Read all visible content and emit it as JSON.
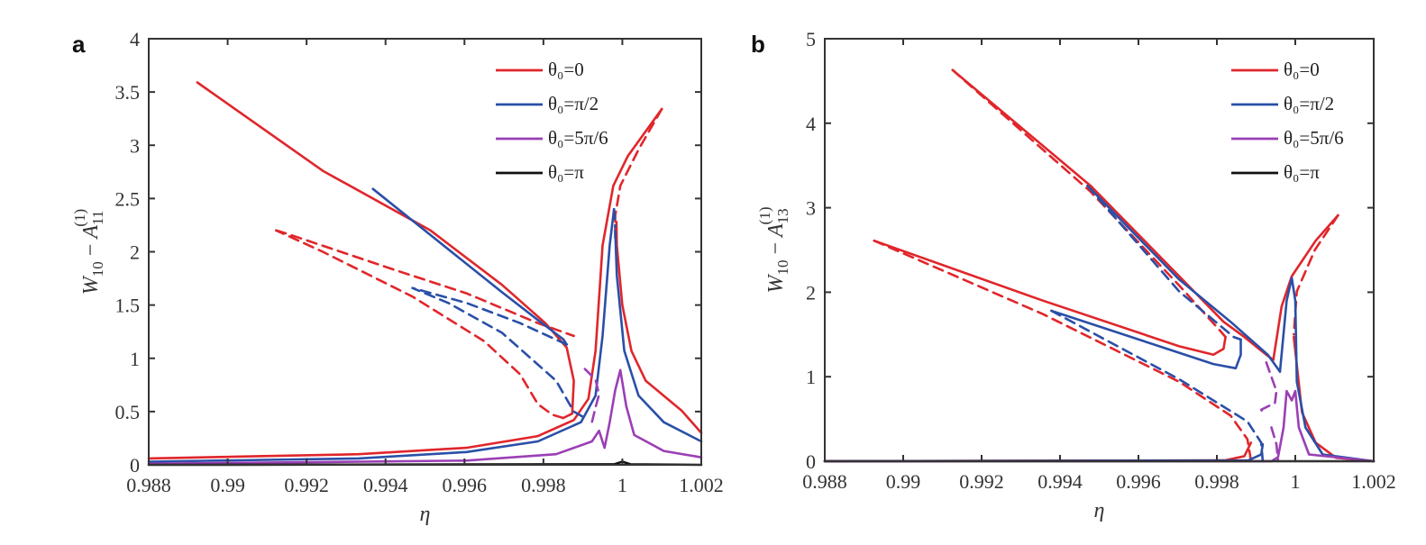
{
  "chart_data": [
    {
      "type": "line",
      "panel_label": "a",
      "xlabel": "η",
      "ylabel": {
        "base": "W",
        "sub": "10",
        "op": " − ",
        "base2": "A",
        "sub2": "11",
        "sup2": "(1)"
      },
      "xlim": [
        0.988,
        1.002
      ],
      "ylim": [
        0,
        4
      ],
      "xticks": [
        "0.988",
        "0.99",
        "0.992",
        "0.994",
        "0.996",
        "0.998",
        "1",
        "1.002"
      ],
      "yticks": [
        "0",
        "0.5",
        "1",
        "1.5",
        "2",
        "2.5",
        "3",
        "3.5",
        "4"
      ],
      "grid": false,
      "legend_position": "top-right",
      "series": [
        {
          "name": "θ₀=0",
          "color": "#e0262b",
          "solid": [
            [
              [
                0.98923,
                3.59
              ],
              [
                0.99241,
                2.76
              ],
              [
                0.99514,
                2.2
              ],
              [
                0.99695,
                1.69
              ],
              [
                0.99805,
                1.33
              ],
              [
                0.99859,
                1.1
              ],
              [
                0.99877,
                0.79
              ],
              [
                0.99873,
                0.48
              ],
              [
                0.9985,
                0.44
              ]
            ],
            [
              [
                0.988,
                0.06
              ],
              [
                0.99332,
                0.1
              ],
              [
                0.99605,
                0.16
              ],
              [
                0.99786,
                0.27
              ],
              [
                0.99877,
                0.42
              ],
              [
                0.99914,
                0.62
              ],
              [
                0.99932,
                1.07
              ],
              [
                0.9995,
                2.06
              ],
              [
                0.99977,
                2.62
              ],
              [
                1.00014,
                2.9
              ],
              [
                1.001,
                3.34
              ]
            ],
            [
              [
                0.99985,
                2.28
              ],
              [
                0.99986,
                2.06
              ],
              [
                1.0,
                1.5
              ],
              [
                1.00023,
                1.07
              ],
              [
                1.00059,
                0.79
              ],
              [
                1.0015,
                0.51
              ],
              [
                1.002,
                0.3
              ]
            ]
          ],
          "dashed": [
            [
              [
                0.9985,
                0.44
              ],
              [
                0.99823,
                0.47
              ],
              [
                0.99786,
                0.57
              ],
              [
                0.99741,
                0.85
              ],
              [
                0.9965,
                1.16
              ],
              [
                0.99468,
                1.58
              ],
              [
                0.99241,
                2.0
              ],
              [
                0.99123,
                2.2
              ]
            ],
            [
              [
                0.99123,
                2.2
              ],
              [
                0.9915,
                2.17
              ],
              [
                0.99423,
                1.83
              ],
              [
                0.99605,
                1.61
              ],
              [
                0.99786,
                1.33
              ],
              [
                0.99877,
                1.21
              ]
            ],
            [
              [
                1.001,
                3.34
              ],
              [
                1.00041,
                2.96
              ],
              [
                0.99995,
                2.62
              ],
              [
                0.99982,
                2.34
              ],
              [
                0.99982,
                2.11
              ]
            ]
          ]
        },
        {
          "name": "θ₀=π/2",
          "color": "#2a4fa8",
          "solid": [
            [
              [
                0.99368,
                2.59
              ],
              [
                0.99695,
                1.62
              ],
              [
                0.99786,
                1.36
              ],
              [
                0.9985,
                1.18
              ],
              [
                0.99859,
                1.13
              ]
            ],
            [
              [
                0.988,
                0.03
              ],
              [
                0.99332,
                0.06
              ],
              [
                0.99605,
                0.12
              ],
              [
                0.99786,
                0.22
              ],
              [
                0.99895,
                0.4
              ],
              [
                0.99932,
                0.65
              ],
              [
                0.9995,
                1.21
              ],
              [
                0.99968,
                2.06
              ],
              [
                0.99979,
                2.4
              ]
            ],
            [
              [
                0.99982,
                2.2
              ],
              [
                0.99986,
                1.78
              ],
              [
                1.00005,
                1.07
              ],
              [
                1.00041,
                0.65
              ],
              [
                1.00105,
                0.4
              ],
              [
                1.002,
                0.22
              ]
            ]
          ],
          "dashed": [
            [
              [
                0.99859,
                1.13
              ],
              [
                0.99741,
                1.33
              ],
              [
                0.99605,
                1.52
              ],
              [
                0.99468,
                1.66
              ],
              [
                0.99559,
                1.52
              ],
              [
                0.99695,
                1.24
              ],
              [
                0.99832,
                0.79
              ],
              [
                0.99877,
                0.5
              ],
              [
                0.99905,
                0.44
              ]
            ],
            [
              [
                0.99979,
                2.4
              ],
              [
                0.99982,
                2.23
              ]
            ]
          ]
        },
        {
          "name": "θ₀=5π/6",
          "color": "#9b3fb5",
          "solid": [
            [
              [
                0.988,
                0.01
              ],
              [
                0.99605,
                0.04
              ],
              [
                0.99832,
                0.1
              ],
              [
                0.99923,
                0.22
              ],
              [
                0.99941,
                0.32
              ],
              [
                0.99955,
                0.16
              ],
              [
                0.99968,
                0.4
              ],
              [
                0.99982,
                0.7
              ],
              [
                0.99995,
                0.89
              ],
              [
                1.0001,
                0.55
              ],
              [
                1.0003,
                0.28
              ],
              [
                1.00105,
                0.13
              ],
              [
                1.002,
                0.07
              ]
            ]
          ],
          "dashed": [
            [
              [
                0.99905,
                0.9
              ],
              [
                0.99932,
                0.8
              ],
              [
                0.99941,
                0.66
              ],
              [
                0.99932,
                0.54
              ],
              [
                0.99923,
                0.4
              ]
            ]
          ]
        },
        {
          "name": "θ₀=π",
          "color": "#111111",
          "solid": [
            [
              [
                0.988,
                0.0
              ],
              [
                0.9998,
                0.005
              ],
              [
                1.0,
                0.03
              ],
              [
                1.0002,
                0.005
              ],
              [
                1.002,
                0.0
              ]
            ]
          ],
          "dashed": []
        }
      ]
    },
    {
      "type": "line",
      "panel_label": "b",
      "xlabel": "η",
      "ylabel": {
        "base": "W",
        "sub": "10",
        "op": " − ",
        "base2": "A",
        "sub2": "13",
        "sup2": "(1)"
      },
      "xlim": [
        0.988,
        1.002
      ],
      "ylim": [
        0,
        5
      ],
      "xticks": [
        "0.988",
        "0.99",
        "0.992",
        "0.994",
        "0.996",
        "0.998",
        "1",
        "1.002"
      ],
      "yticks": [
        "0",
        "1",
        "2",
        "3",
        "4",
        "5"
      ],
      "grid": false,
      "legend_position": "top-right",
      "series": [
        {
          "name": "θ₀=0",
          "color": "#e0262b",
          "solid": [
            [
              [
                0.99126,
                4.63
              ],
              [
                0.99478,
                3.26
              ],
              [
                0.99704,
                2.19
              ],
              [
                0.99817,
                1.65
              ],
              [
                0.9987,
                1.47
              ],
              [
                0.99926,
                1.26
              ],
              [
                0.99944,
                1.2
              ]
            ],
            [
              [
                0.98926,
                2.61
              ],
              [
                0.99357,
                1.9
              ],
              [
                0.99704,
                1.36
              ],
              [
                0.99791,
                1.26
              ],
              [
                0.99817,
                1.33
              ],
              [
                0.99822,
                1.47
              ]
            ],
            [
              [
                0.988,
                0
              ],
              [
                0.9982,
                0.01
              ],
              [
                0.9987,
                0.06
              ],
              [
                0.99887,
                0.22
              ]
            ],
            [
              [
                0.99944,
                1.2
              ],
              [
                0.99965,
                1.83
              ],
              [
                0.99991,
                2.19
              ],
              [
                1.00052,
                2.61
              ],
              [
                1.00109,
                2.91
              ]
            ],
            [
              [
                0.99996,
                1.47
              ],
              [
                1.00017,
                0.58
              ],
              [
                1.00052,
                0.22
              ],
              [
                1.00104,
                0.04
              ],
              [
                1.002,
                0
              ]
            ]
          ],
          "dashed": [
            [
              [
                0.99126,
                4.63
              ],
              [
                0.99478,
                3.19
              ],
              [
                0.99704,
                2.08
              ],
              [
                0.99809,
                1.54
              ],
              [
                0.99822,
                1.47
              ]
            ],
            [
              [
                0.98926,
                2.61
              ],
              [
                0.99357,
                1.74
              ],
              [
                0.99704,
                0.94
              ],
              [
                0.99835,
                0.54
              ],
              [
                0.99878,
                0.26
              ],
              [
                0.99887,
                0.01
              ]
            ],
            [
              [
                1.00109,
                2.91
              ],
              [
                1.0005,
                2.5
              ],
              [
                1.00004,
                2.01
              ],
              [
                0.99996,
                1.5
              ]
            ]
          ]
        },
        {
          "name": "θ₀=π/2",
          "color": "#2a4fa8",
          "solid": [
            [
              [
                0.9947,
                3.26
              ],
              [
                0.99704,
                2.15
              ],
              [
                0.99835,
                1.65
              ],
              [
                0.9993,
                1.26
              ],
              [
                0.99961,
                1.06
              ]
            ],
            [
              [
                0.99378,
                1.78
              ],
              [
                0.99791,
                1.15
              ],
              [
                0.99848,
                1.1
              ],
              [
                0.99861,
                1.26
              ],
              [
                0.99861,
                1.44
              ]
            ],
            [
              [
                0.988,
                0
              ],
              [
                0.9988,
                0.01
              ],
              [
                0.99913,
                0.08
              ],
              [
                0.99917,
                0.2
              ]
            ],
            [
              [
                0.99961,
                1.06
              ],
              [
                0.99978,
                1.9
              ],
              [
                0.99991,
                2.17
              ],
              [
                1.0,
                1.9
              ],
              [
                1.00004,
                0.94
              ],
              [
                1.00026,
                0.4
              ],
              [
                1.0007,
                0.08
              ],
              [
                1.002,
                0
              ]
            ]
          ],
          "dashed": [
            [
              [
                0.9947,
                3.26
              ],
              [
                0.99704,
                2.01
              ],
              [
                0.99843,
                1.47
              ],
              [
                0.99861,
                1.44
              ]
            ],
            [
              [
                0.99378,
                1.78
              ],
              [
                0.99704,
                0.97
              ],
              [
                0.99878,
                0.47
              ],
              [
                0.99913,
                0.22
              ],
              [
                0.99917,
                0
              ]
            ]
          ]
        },
        {
          "name": "θ₀=5π/6",
          "color": "#9b3fb5",
          "solid": [
            [
              [
                0.988,
                0
              ],
              [
                0.9994,
                0
              ],
              [
                0.99956,
                0.05
              ],
              [
                0.9997,
                0.4
              ],
              [
                0.99978,
                0.83
              ],
              [
                0.99991,
                0.72
              ],
              [
                1.0,
                0.83
              ],
              [
                1.00009,
                0.4
              ],
              [
                1.00035,
                0.08
              ],
              [
                1.002,
                0
              ]
            ]
          ],
          "dashed": [
            [
              [
                0.99926,
                1.17
              ],
              [
                0.99952,
                0.83
              ],
              [
                0.99948,
                0.69
              ],
              [
                0.99913,
                0.61
              ],
              [
                0.99917,
                0.58
              ]
            ],
            [
              [
                0.99939,
                0.4
              ],
              [
                0.99952,
                0.2
              ],
              [
                0.99956,
                0
              ]
            ]
          ]
        },
        {
          "name": "θ₀=π",
          "color": "#111111",
          "solid": [
            [
              [
                0.988,
                0
              ],
              [
                1.002,
                0
              ]
            ]
          ],
          "dashed": []
        }
      ]
    }
  ]
}
